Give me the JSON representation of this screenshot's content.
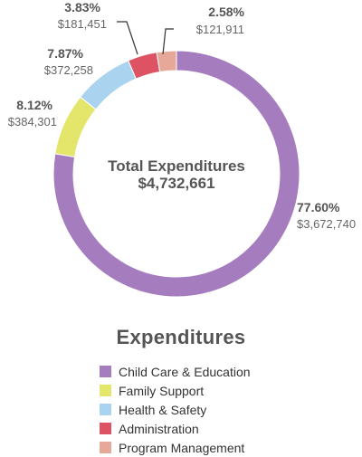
{
  "chart_data": {
    "type": "pie",
    "donut": true,
    "center_label": "Total Expenditures",
    "center_value": "$4,732,661",
    "legend_title": "Expenditures",
    "legend_placement": "bottom",
    "slices": [
      {
        "name": "Child Care & Education",
        "value": 3672740,
        "percent": 77.6,
        "percent_label": "77.60%",
        "value_label": "$3,672,740",
        "color": "#a57dbf"
      },
      {
        "name": "Family Support",
        "value": 384301,
        "percent": 8.12,
        "percent_label": "8.12%",
        "value_label": "$384,301",
        "color": "#e4e66c"
      },
      {
        "name": "Health & Safety",
        "value": 372258,
        "percent": 7.87,
        "percent_label": "7.87%",
        "value_label": "$372,258",
        "color": "#a9d3ee"
      },
      {
        "name": "Administration",
        "value": 181451,
        "percent": 3.83,
        "percent_label": "3.83%",
        "value_label": "$181,451",
        "color": "#dd5364"
      },
      {
        "name": "Program Management",
        "value": 121911,
        "percent": 2.58,
        "percent_label": "2.58%",
        "value_label": "$121,911",
        "color": "#e6a999"
      }
    ]
  }
}
